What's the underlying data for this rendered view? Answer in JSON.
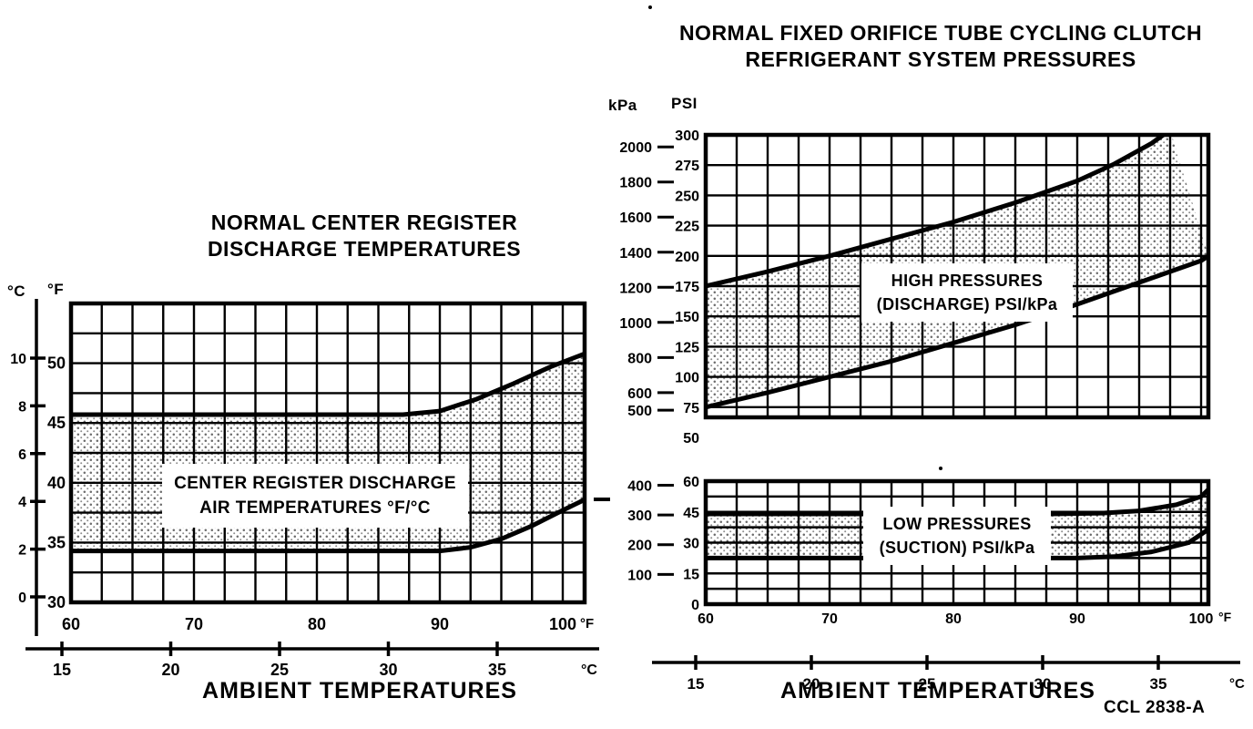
{
  "figure_code": "CCL 2838-A",
  "chart_data": [
    {
      "id": "center-register-discharge-temps",
      "type": "area",
      "title_lines": [
        "NORMAL CENTER REGISTER",
        "DISCHARGE TEMPERATURES"
      ],
      "band_label_lines": [
        "CENTER REGISTER DISCHARGE",
        "AIR TEMPERATURES °F/°C"
      ],
      "x_label": "AMBIENT TEMPERATURES",
      "y_axis_primary": {
        "unit": "°F",
        "ticks": [
          50,
          45,
          40,
          35,
          30
        ],
        "range": [
          30,
          55
        ],
        "grid_step": 2.5
      },
      "y_axis_secondary": {
        "unit": "°C",
        "ticks": [
          10,
          8,
          6,
          4,
          2,
          0
        ]
      },
      "x_axis_primary": {
        "unit": "°F",
        "ticks": [
          60,
          70,
          80,
          90,
          100
        ],
        "range": [
          60,
          101.8
        ],
        "grid_step": 2.5
      },
      "x_axis_secondary": {
        "unit": "°C",
        "ticks": [
          15,
          20,
          25,
          30,
          35
        ]
      },
      "band": {
        "upper_x_f": [
          60,
          78,
          87,
          90,
          93,
          96,
          99,
          101.8
        ],
        "upper_f": [
          45.7,
          45.7,
          45.7,
          46,
          47,
          48.3,
          49.7,
          50.8
        ],
        "lower_x_f": [
          60,
          80,
          90,
          92.5,
          95,
          97.5,
          100,
          101.8
        ],
        "lower_f": [
          34.3,
          34.3,
          34.3,
          34.6,
          35.3,
          36.4,
          37.7,
          38.6
        ]
      }
    },
    {
      "id": "high-pressures-discharge",
      "type": "area",
      "title_lines": [
        "NORMAL FIXED ORIFICE TUBE CYCLING CLUTCH",
        "REFRIGERANT SYSTEM PRESSURES"
      ],
      "band_label_lines": [
        "HIGH PRESSURES",
        "(DISCHARGE) PSI/kPa"
      ],
      "unit_kpa": "kPa",
      "unit_psi": "PSI",
      "y_axis_psi": {
        "unit": "PSI",
        "ticks": [
          300,
          275,
          250,
          225,
          200,
          175,
          150,
          125,
          100,
          75,
          50
        ],
        "range": [
          66.6,
          300
        ],
        "grid_step": 25
      },
      "y_axis_kpa": {
        "unit": "kPa",
        "ticks": [
          2000,
          1800,
          1600,
          1400,
          1200,
          1000,
          800,
          600,
          500
        ],
        "kpa_per_psi": 6.895
      },
      "x_axis_primary": {
        "unit": "°F",
        "ticks": [
          60,
          70,
          80,
          90,
          100
        ],
        "range": [
          60,
          100.6
        ],
        "grid_step": 2.5
      },
      "band": {
        "upper_x_f": [
          60,
          65,
          70,
          75,
          80,
          85,
          90,
          93,
          96,
          97.5
        ],
        "upper_psi": [
          175,
          187,
          200,
          214,
          228,
          244,
          262,
          276,
          293,
          304
        ],
        "lower_x_f": [
          60,
          65,
          70,
          75,
          80,
          85,
          90,
          95,
          100,
          100.6
        ],
        "lower_psi": [
          75,
          87,
          100,
          113,
          128,
          143,
          160,
          178,
          196,
          200
        ]
      }
    },
    {
      "id": "low-pressures-suction",
      "type": "area",
      "band_label_lines": [
        "LOW PRESSURES",
        "(SUCTION) PSI/kPa"
      ],
      "x_label": "AMBIENT TEMPERATURES",
      "y_axis_psi": {
        "unit": "PSI",
        "ticks": [
          60,
          45,
          30,
          15,
          0
        ],
        "range": [
          0,
          60
        ],
        "grid_step": 7.5
      },
      "y_axis_kpa": {
        "unit": "kPa",
        "ticks": [
          400,
          300,
          200,
          100
        ],
        "kpa_per_psi": 6.895
      },
      "x_axis_primary": {
        "unit": "°F",
        "ticks": [
          60,
          70,
          80,
          90,
          100
        ],
        "range": [
          60,
          100.6
        ],
        "grid_step": 2.5
      },
      "x_axis_secondary": {
        "unit": "°C",
        "ticks": [
          15,
          20,
          25,
          30,
          35
        ]
      },
      "band": {
        "upper_x_f": [
          60,
          88,
          92,
          95,
          98,
          100,
          100.6
        ],
        "upper_psi": [
          44,
          44,
          44.4,
          45.5,
          48.5,
          52.5,
          56
        ],
        "lower_x_f": [
          60,
          90,
          93,
          96,
          99,
          100.6
        ],
        "lower_psi": [
          22.5,
          22.5,
          23.2,
          25.5,
          30,
          36.5
        ]
      }
    }
  ]
}
